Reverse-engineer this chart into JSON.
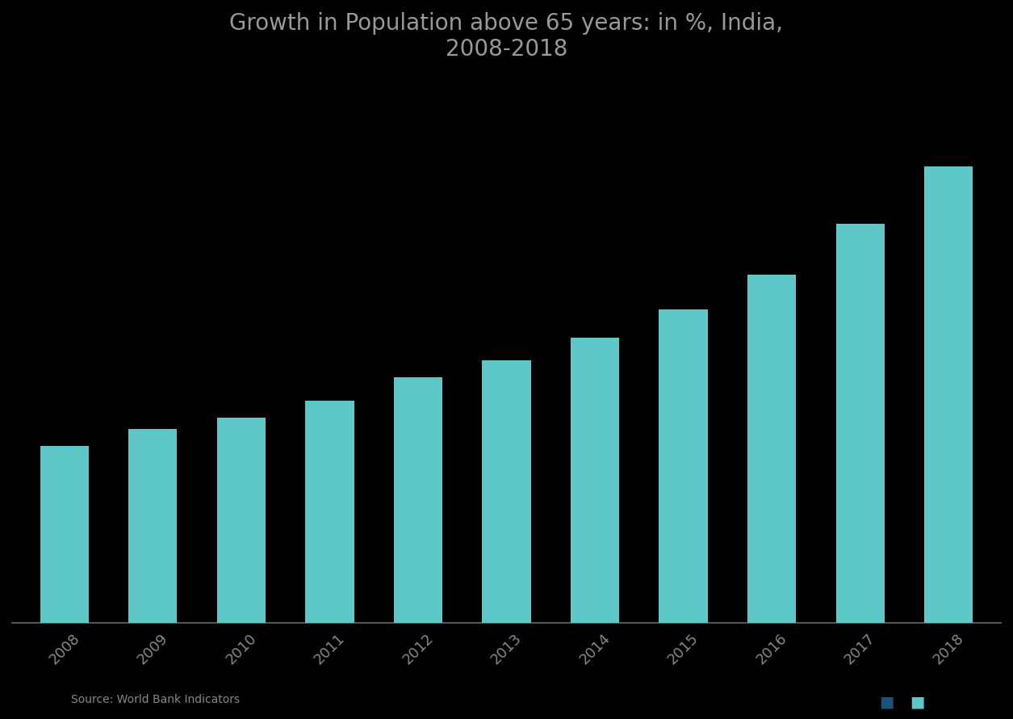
{
  "title_line1": "Growth in Population above 65 years: in %, India,",
  "title_line2": "2008-2018",
  "years": [
    "2008",
    "2009",
    "2010",
    "2011",
    "2012",
    "2013",
    "2014",
    "2015",
    "2016",
    "2017",
    "2018"
  ],
  "values": [
    3.1,
    3.4,
    3.6,
    3.9,
    4.3,
    4.6,
    5.0,
    5.5,
    6.1,
    7.0,
    8.0
  ],
  "bar_color": "#5EC8C8",
  "background_color": "#000000",
  "text_color": "#888888",
  "title_color": "#999999",
  "axis_line_color": "#555555",
  "ylim": [
    0,
    9.5
  ],
  "title_fontsize": 20,
  "tick_fontsize": 13,
  "source_text": "Source: World Bank Indicators",
  "bar_width": 0.55
}
